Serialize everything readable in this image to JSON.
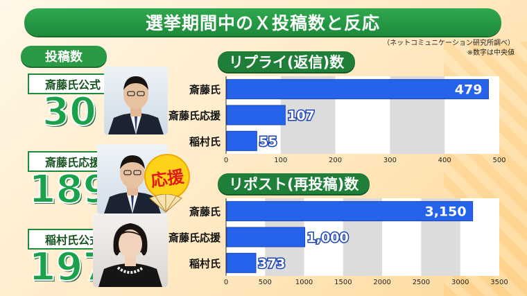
{
  "title": "選挙期間中のＸ投稿数と反応",
  "source_note": "（ネットコミュニケーション研究所調べ）",
  "median_note": "※数字は中央値",
  "posts_header": "投稿数",
  "badge_text": "応援",
  "accounts": [
    {
      "label": "斎藤氏公式",
      "count": "30"
    },
    {
      "label": "斎藤氏応援",
      "count": "189"
    },
    {
      "label": "稲村氏公式",
      "count": "197"
    }
  ],
  "chart_data": [
    {
      "type": "bar",
      "title": "リプライ(返信)数",
      "categories": [
        "斎藤氏",
        "斎藤氏応援",
        "稲村氏"
      ],
      "values": [
        479,
        107,
        55
      ],
      "value_labels": [
        "479",
        "107",
        "55"
      ],
      "xlim": [
        0,
        500
      ],
      "ticks": [
        "0",
        "100",
        "200",
        "300",
        "400",
        "500"
      ],
      "orientation": "horizontal",
      "bar_color": "#2563eb"
    },
    {
      "type": "bar",
      "title": "リポスト(再投稿)数",
      "categories": [
        "斎藤氏",
        "斎藤氏応援",
        "稲村氏"
      ],
      "values": [
        3150,
        1000,
        373
      ],
      "value_labels": [
        "3,150",
        "1,000",
        "373"
      ],
      "xlim": [
        0,
        3500
      ],
      "ticks": [
        "0",
        "500",
        "1000",
        "1500",
        "2000",
        "2500",
        "3000",
        "3500"
      ],
      "orientation": "horizontal",
      "bar_color": "#2563eb"
    }
  ]
}
